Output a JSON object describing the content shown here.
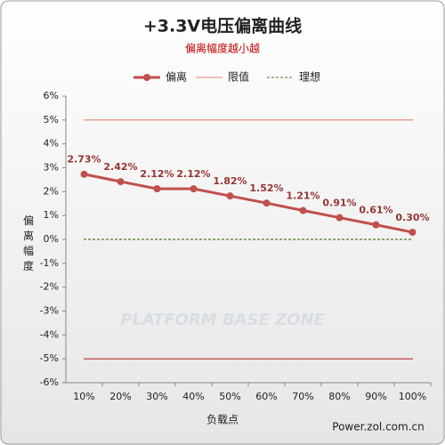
{
  "chart_data": {
    "type": "line",
    "title": "+3.3V电压偏离曲线",
    "subtitle": "偏离幅度越小越",
    "y_label": "偏离幅度",
    "x_label": "负载点",
    "source": "Power.zol.com.cn",
    "watermark": "PLATFORM BASE ZONE",
    "categories": [
      "10%",
      "20%",
      "30%",
      "40%",
      "50%",
      "60%",
      "70%",
      "80%",
      "90%",
      "100%"
    ],
    "series": [
      {
        "name": "偏离",
        "color": "#c0504d",
        "values": [
          2.73,
          2.42,
          2.12,
          2.12,
          1.82,
          1.52,
          1.21,
          0.91,
          0.61,
          0.3
        ],
        "value_labels": [
          "2.73%",
          "2.42%",
          "2.12%",
          "2.12%",
          "1.82%",
          "1.52%",
          "1.21%",
          "0.91%",
          "0.61%",
          "0.30%"
        ]
      }
    ],
    "reference_lines": [
      {
        "name": "限值",
        "values": [
          5,
          -5
        ],
        "colors": [
          "#e8806f",
          "#b83030"
        ],
        "dash": false
      },
      {
        "name": "理想",
        "values": [
          0
        ],
        "colors": [
          "#4f7a28"
        ],
        "dash": true
      }
    ],
    "ylim": [
      -6,
      6
    ],
    "yticks": [
      {
        "value": -6,
        "label": "-6%"
      },
      {
        "value": -5,
        "label": "-5%"
      },
      {
        "value": -4,
        "label": "-4%"
      },
      {
        "value": -3,
        "label": "-3%"
      },
      {
        "value": -2,
        "label": "-2%"
      },
      {
        "value": -1,
        "label": "-1%"
      },
      {
        "value": 0,
        "label": "0%"
      },
      {
        "value": 1,
        "label": "1%"
      },
      {
        "value": 2,
        "label": "2%"
      },
      {
        "value": 3,
        "label": "3%"
      },
      {
        "value": 4,
        "label": "4%"
      },
      {
        "value": 5,
        "label": "5%"
      },
      {
        "value": 6,
        "label": "6%"
      }
    ]
  }
}
